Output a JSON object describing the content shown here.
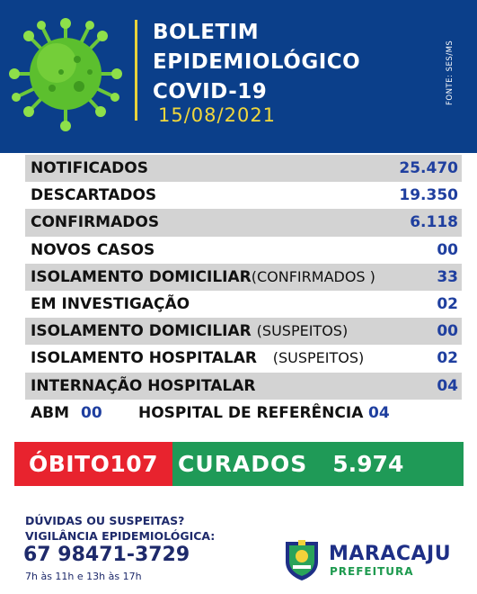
{
  "header": {
    "title_line1": "BOLETIM",
    "title_line2": "EPIDEMIOLÓGICO",
    "title_line3": "COVID-19",
    "date": "15/08/2021",
    "source": "FONTE: SES/MS",
    "illustration": "virus-icon"
  },
  "stats": [
    {
      "label": "NOTIFICADOS",
      "extra": "",
      "value": "25.470"
    },
    {
      "label": "DESCARTADOS",
      "extra": "",
      "value": "19.350"
    },
    {
      "label": "CONFIRMADOS",
      "extra": "",
      "value": "6.118"
    },
    {
      "label": "NOVOS CASOS",
      "extra": "",
      "value": "00"
    },
    {
      "label": "ISOLAMENTO DOMICILIAR",
      "extra": "(CONFIRMADOS )",
      "value": "33"
    },
    {
      "label": "EM INVESTIGAÇÃO",
      "extra": "",
      "value": "02"
    },
    {
      "label": "ISOLAMENTO DOMICILIAR",
      "extra": "(SUSPEITOS)",
      "value": "00"
    },
    {
      "label": "ISOLAMENTO HOSPITALAR",
      "extra": "(SUSPEITOS)",
      "value": "02"
    },
    {
      "label": "INTERNAÇÃO HOSPITALAR",
      "extra": "",
      "value": "04"
    }
  ],
  "abm": {
    "label": "ABM",
    "value": "00",
    "hospital_label": "HOSPITAL DE REFERÊNCIA",
    "hospital_value": "04"
  },
  "outcomes": {
    "obito_label": "ÓBITO",
    "obito_value": "107",
    "curados_label": "CURADOS",
    "curados_value": "5.974"
  },
  "footer": {
    "line1": "DÚVIDAS OU SUSPEITAS?",
    "line2": "VIGILÂNCIA EPIDEMIOLÓGICA:",
    "phone": "67 98471-3729",
    "hours": "7h às 11h e 13h às 17h",
    "city": "MARACAJU",
    "prefeitura": "PREFEITURA",
    "crest_icon": "city-crest-icon"
  },
  "colors": {
    "header_bg": "#0b3f8a",
    "date_yellow": "#f1d83c",
    "value_blue": "#1f3f9f",
    "obito_red": "#e8232e",
    "curados_green": "#1f9a57",
    "row_shade": "#d3d3d3"
  }
}
